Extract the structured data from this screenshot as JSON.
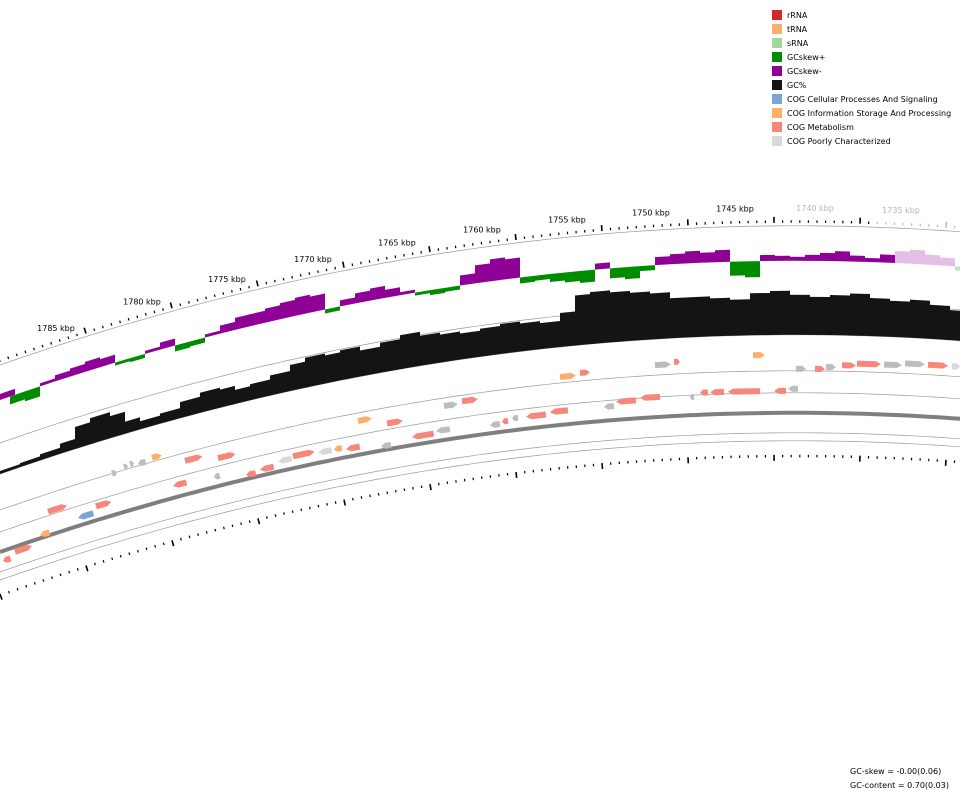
{
  "ruler": {
    "labels": [
      "1785 kbp",
      "1780 kbp",
      "1775 kbp",
      "1770 kbp",
      "1765 kbp",
      "1760 kbp",
      "1755 kbp",
      "1750 kbp",
      "1745 kbp",
      "1740 kbp",
      "1735 kbp"
    ],
    "faded_labels": [
      "1740 kbp",
      "1735 kbp"
    ]
  },
  "legend": [
    {
      "label": "rRNA",
      "color": "#d62728"
    },
    {
      "label": "tRNA",
      "color": "#fdae6b"
    },
    {
      "label": "sRNA",
      "color": "#a1d99b"
    },
    {
      "label": "GCskew+",
      "color": "#008c00"
    },
    {
      "label": "GCskew-",
      "color": "#8e0096"
    },
    {
      "label": "GC%",
      "color": "#141414"
    },
    {
      "label": "COG Cellular Processes And Signaling",
      "color": "#7ba6d1"
    },
    {
      "label": "COG Information Storage And Processing",
      "color": "#fdae6b"
    },
    {
      "label": "COG Metabolism",
      "color": "#f7877a"
    },
    {
      "label": "COG Poorly Characterized",
      "color": "#d9d9d9"
    }
  ],
  "stats": {
    "gc_skew": "GC-skew = -0.00(0.06)",
    "gc_content": "GC-content = 0.70(0.03)"
  },
  "colors": {
    "backbone": "#7f7f7f",
    "track_line": "#9a9a9a",
    "skew_pos": "#008c00",
    "skew_neg": "#8e0096",
    "gc": "#141414",
    "cog_cellular": "#7ba6d1",
    "cog_info": "#fdae6b",
    "cog_metabolism": "#f7877a",
    "cog_poor": "#d9d9d9",
    "gene_gray": "#bdbdbd",
    "srna": "#a1d99b"
  }
}
